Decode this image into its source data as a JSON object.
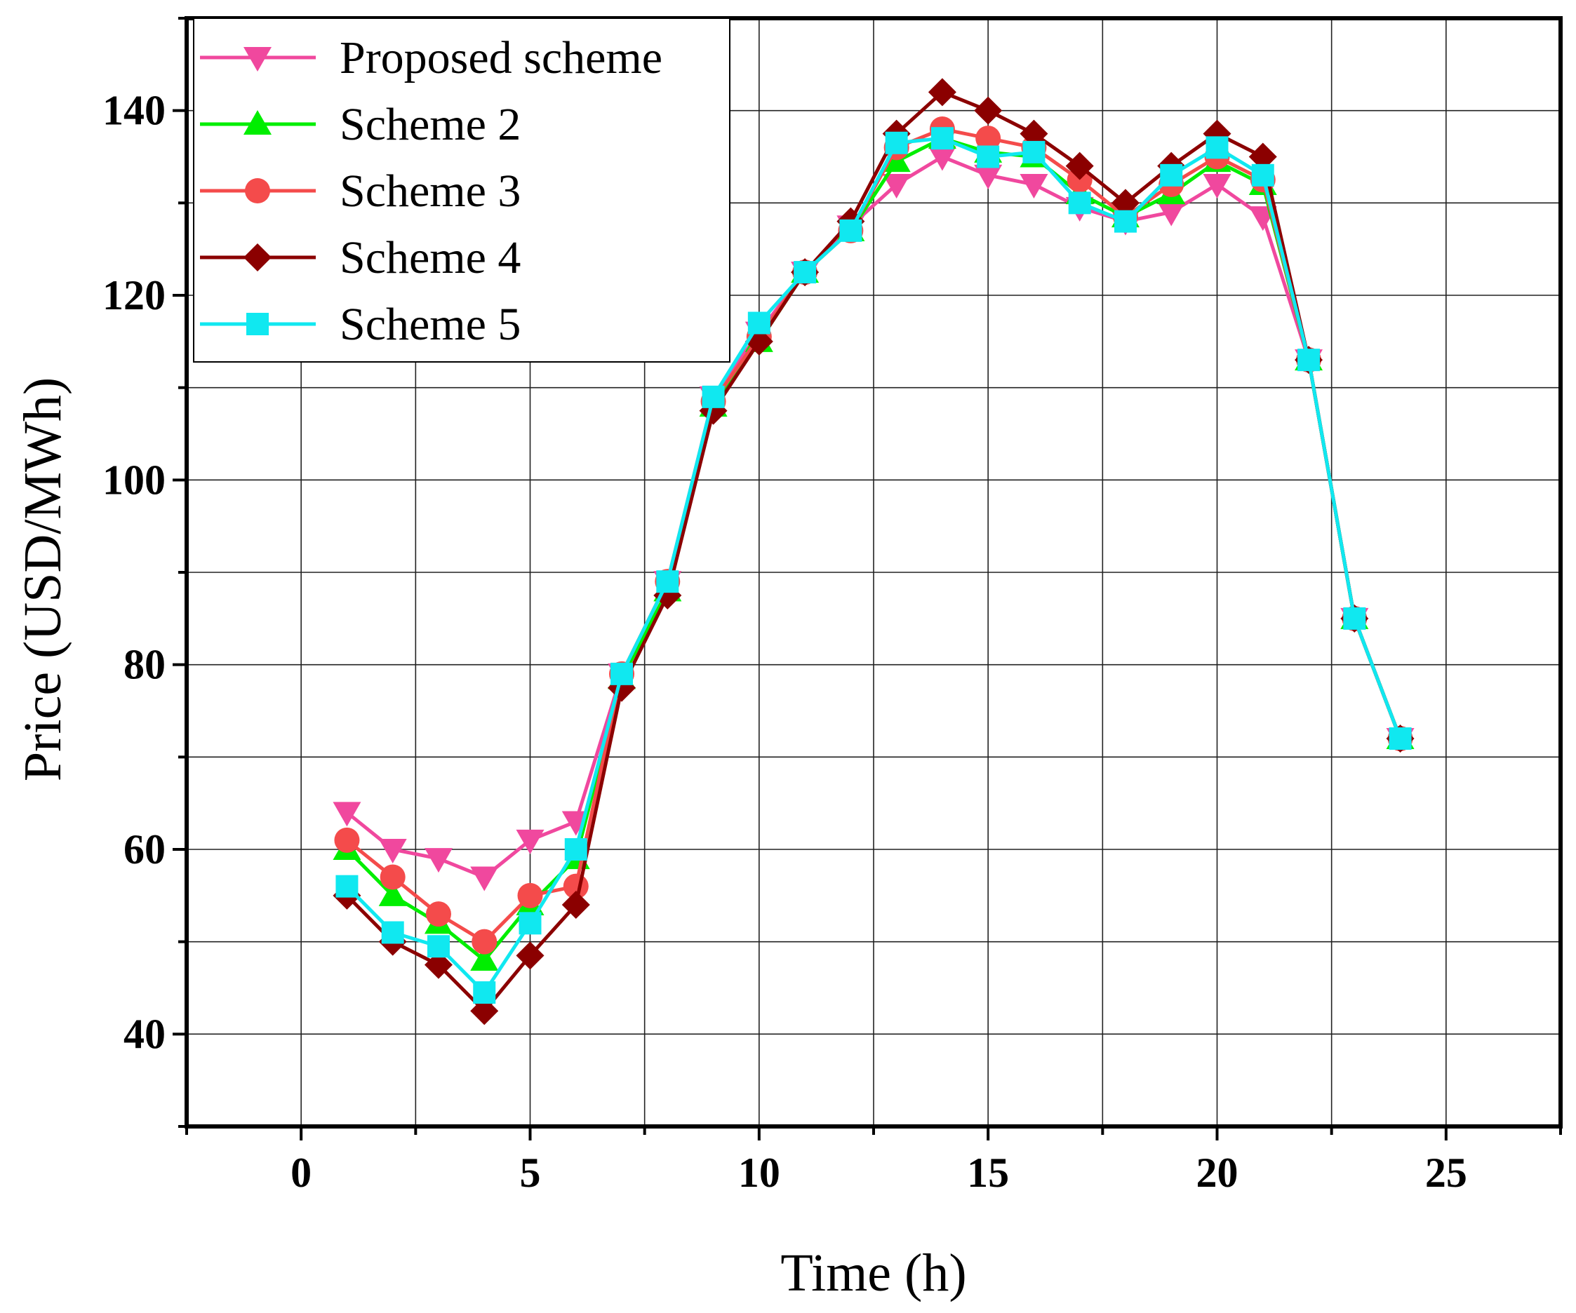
{
  "chart_data": {
    "type": "line",
    "title": "",
    "xlabel": "Time  (h)",
    "ylabel": "Price  (USD/MWh)",
    "xlim": [
      -2.5,
      27.5
    ],
    "ylim": [
      30,
      150
    ],
    "xticks": [
      0,
      5,
      10,
      15,
      20,
      25
    ],
    "xtick_labels": [
      "0",
      "5",
      "10",
      "15",
      "20",
      "25"
    ],
    "yticks": [
      40,
      60,
      80,
      100,
      120,
      140
    ],
    "ytick_labels": [
      "40",
      "60",
      "80",
      "100",
      "120",
      "140"
    ],
    "grid": true,
    "legend_position": "top-left",
    "x": [
      1,
      2,
      3,
      4,
      5,
      6,
      7,
      8,
      9,
      10,
      11,
      12,
      13,
      14,
      15,
      16,
      17,
      18,
      19,
      20,
      21,
      22,
      23,
      24
    ],
    "series": [
      {
        "name": "Proposed scheme",
        "color": "#f0489e",
        "marker": "triangle-down",
        "values": [
          64,
          60,
          59,
          57,
          61,
          63,
          79,
          89,
          109,
          116,
          122.5,
          127.5,
          132,
          135,
          133,
          132,
          129.5,
          128,
          129,
          132,
          128.5,
          113,
          85,
          72
        ]
      },
      {
        "name": "Scheme 2",
        "color": "#00ee00",
        "marker": "triangle-up",
        "values": [
          60,
          55,
          52,
          48,
          54,
          59,
          78.5,
          88,
          108,
          115,
          122.5,
          127,
          134.5,
          137,
          135.5,
          135,
          131,
          128.5,
          131,
          134.5,
          132,
          113,
          85,
          72
        ]
      },
      {
        "name": "Scheme 3",
        "color": "#f44b4b",
        "marker": "circle",
        "values": [
          61,
          57,
          53,
          50,
          55,
          56,
          79,
          89,
          108.5,
          115.5,
          122.5,
          127,
          136,
          138,
          137,
          136,
          132.5,
          128.5,
          132,
          135,
          132.5,
          113,
          85,
          72
        ]
      },
      {
        "name": "Scheme 4",
        "color": "#8b0000",
        "marker": "diamond",
        "values": [
          55,
          50,
          47.5,
          42.5,
          48.5,
          54,
          77.5,
          87.5,
          107.5,
          115,
          122.5,
          128,
          137.5,
          142,
          140,
          137.5,
          134,
          130,
          134,
          137.5,
          135,
          113,
          85,
          72
        ]
      },
      {
        "name": "Scheme 5",
        "color": "#10e8f0",
        "marker": "square",
        "values": [
          56,
          51,
          49.5,
          44.5,
          52,
          60,
          79,
          89,
          109,
          117,
          122.5,
          127,
          136.5,
          137,
          135,
          135.5,
          130,
          128,
          133,
          136,
          133,
          113,
          85,
          72
        ]
      }
    ]
  }
}
